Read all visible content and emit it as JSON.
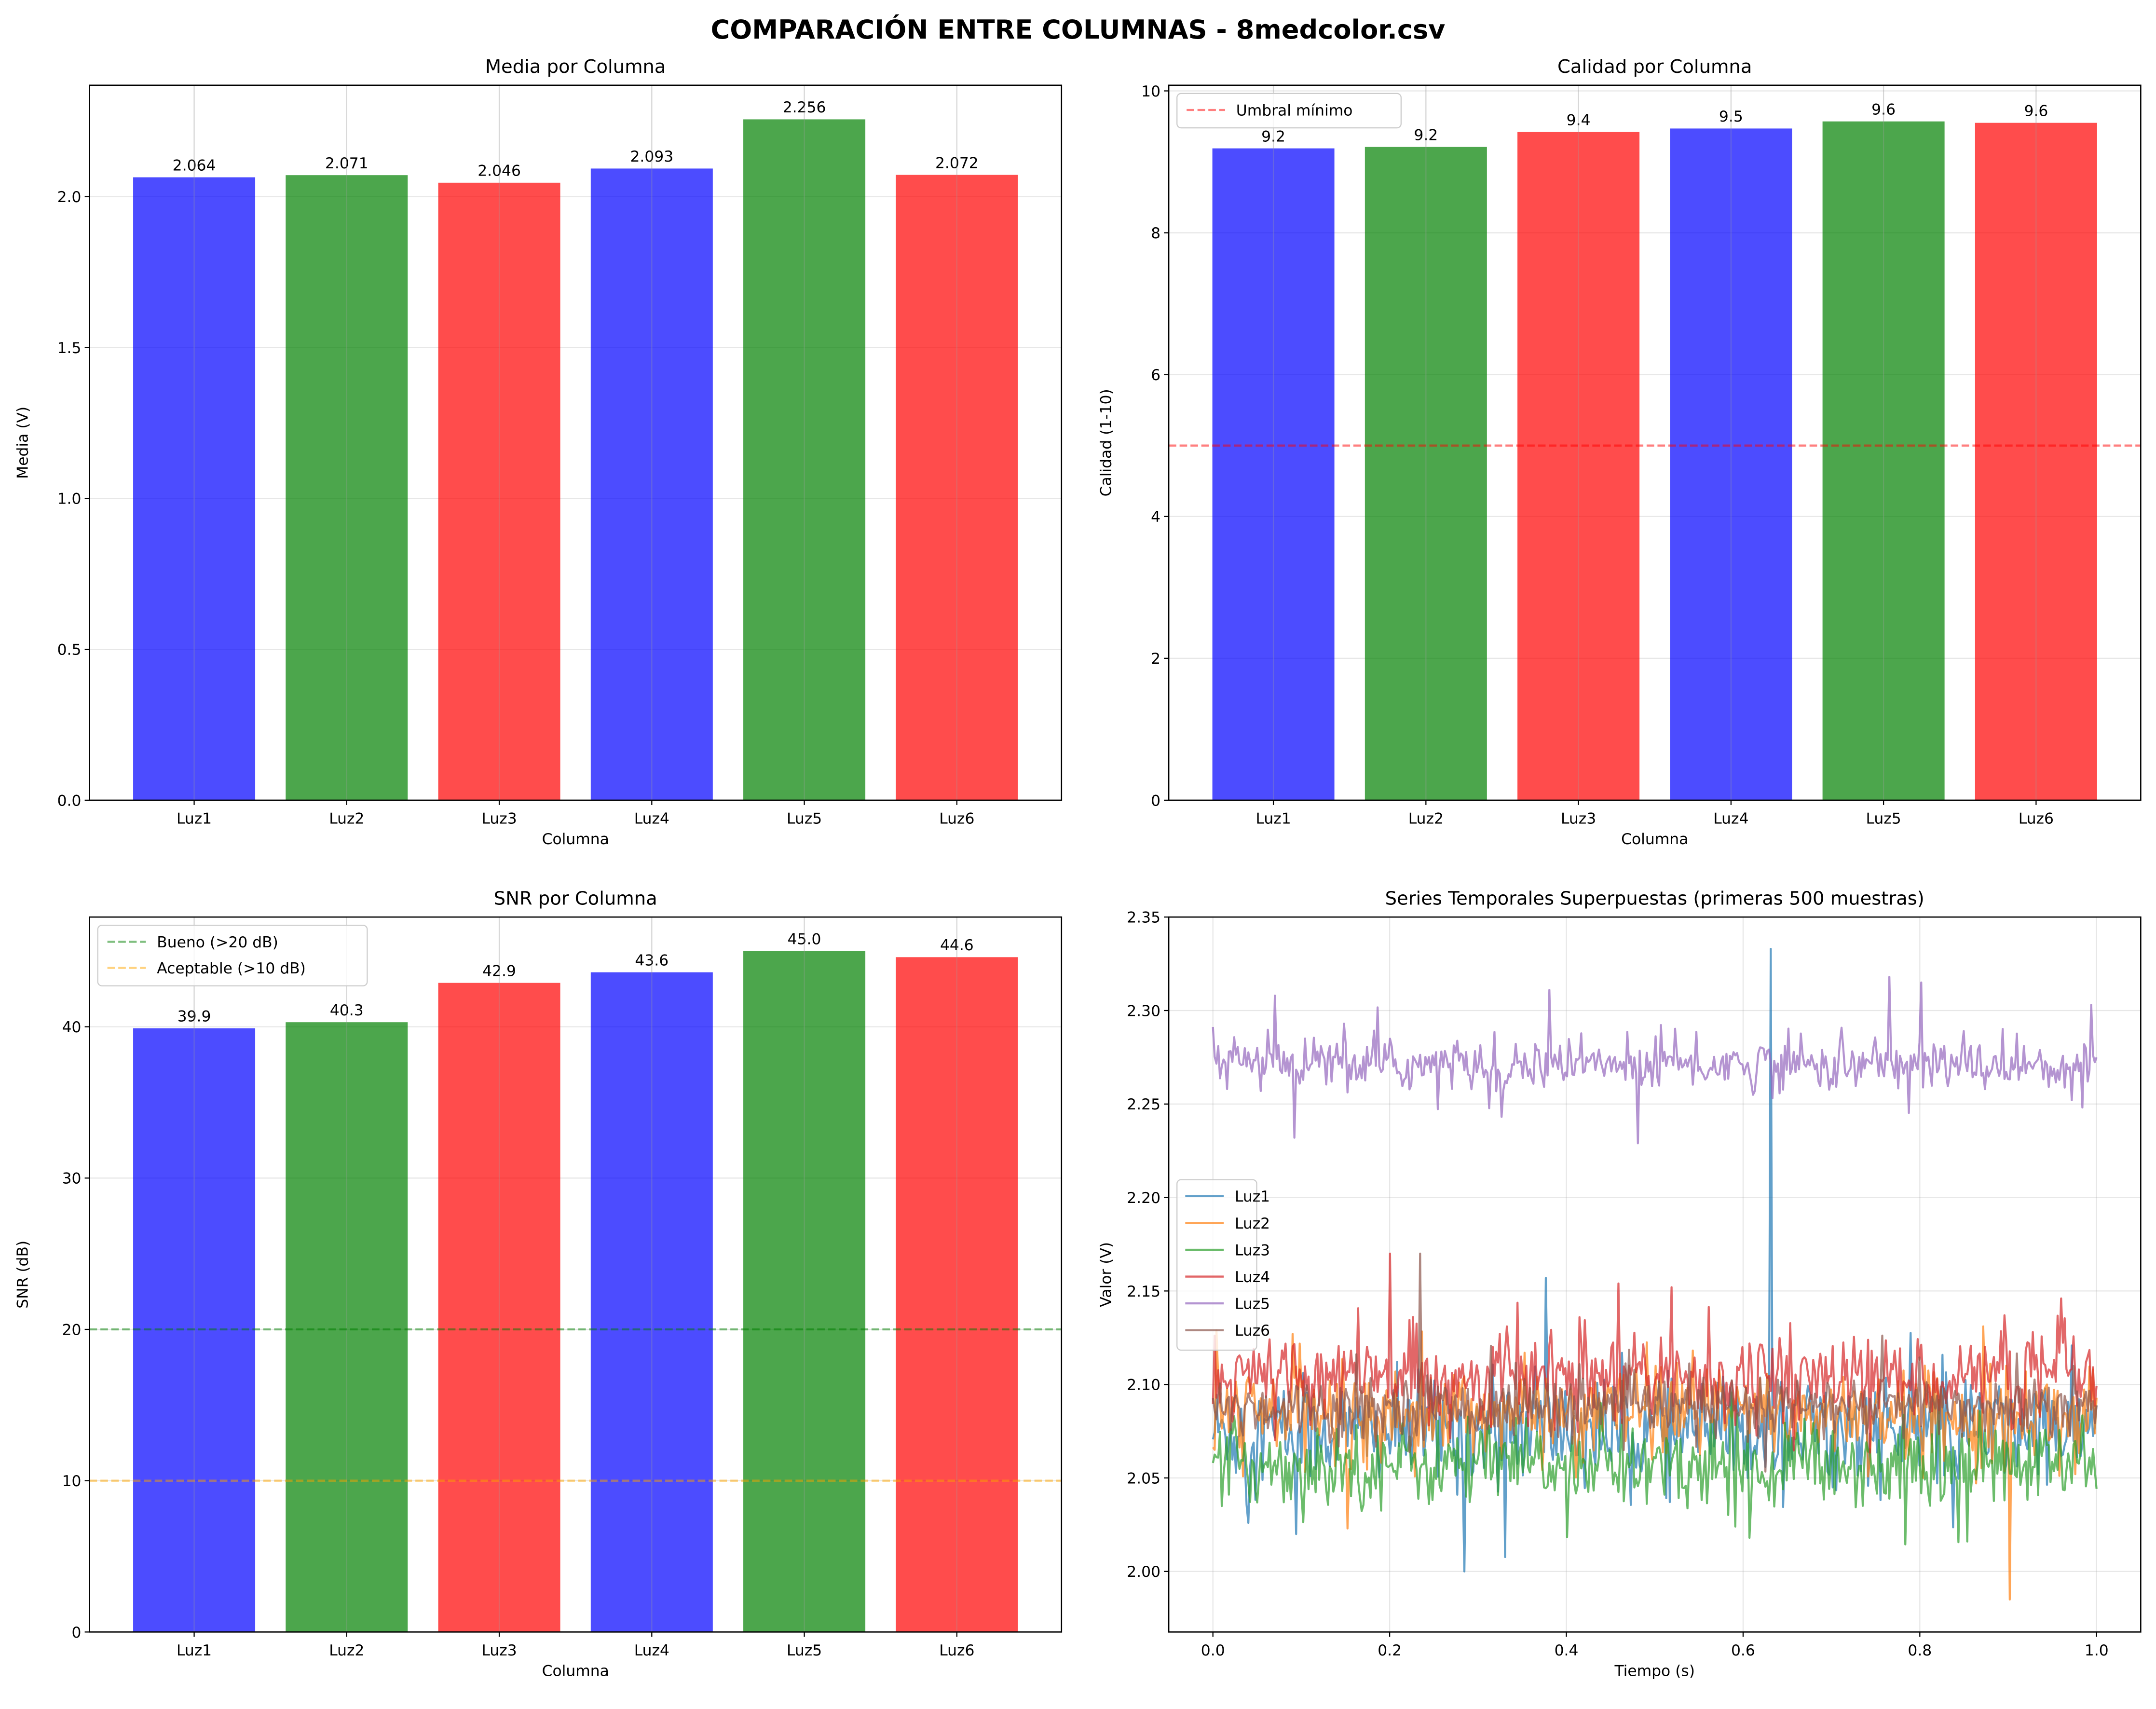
{
  "title": "COMPARACIÓN ENTRE COLUMNAS - 8medcolor.csv",
  "colors": {
    "blue": "#0000ff",
    "green": "#008000",
    "red": "#ff0000",
    "bar_alpha": 0.7
  },
  "chart_data": [
    {
      "type": "bar",
      "title": "Media por Columna",
      "xlabel": "Columna",
      "ylabel": "Media (V)",
      "categories": [
        "Luz1",
        "Luz2",
        "Luz3",
        "Luz4",
        "Luz5",
        "Luz6"
      ],
      "values": [
        2.064,
        2.071,
        2.046,
        2.093,
        2.256,
        2.072
      ],
      "labels": [
        "2.064",
        "2.071",
        "2.046",
        "2.093",
        "2.256",
        "2.072"
      ],
      "bar_colors": [
        "#0000ff",
        "#008000",
        "#ff0000",
        "#0000ff",
        "#008000",
        "#ff0000"
      ],
      "ylim": [
        0,
        2.369
      ],
      "yticks": [
        0,
        0.5,
        1.0,
        1.5,
        2.0
      ],
      "ytick_labels": [
        "0.0",
        "0.5",
        "1.0",
        "1.5",
        "2.0"
      ],
      "grid": true
    },
    {
      "type": "bar",
      "title": "Calidad por Columna",
      "xlabel": "Columna",
      "ylabel": "Calidad (1-10)",
      "categories": [
        "Luz1",
        "Luz2",
        "Luz3",
        "Luz4",
        "Luz5",
        "Luz6"
      ],
      "values": [
        9.19,
        9.21,
        9.42,
        9.47,
        9.57,
        9.55
      ],
      "labels": [
        "9.2",
        "9.2",
        "9.4",
        "9.5",
        "9.6",
        "9.6"
      ],
      "bar_colors": [
        "#0000ff",
        "#008000",
        "#ff0000",
        "#0000ff",
        "#008000",
        "#ff0000"
      ],
      "ylim": [
        0,
        10.08
      ],
      "yticks": [
        0,
        2,
        4,
        6,
        8,
        10
      ],
      "ytick_labels": [
        "0",
        "2",
        "4",
        "6",
        "8",
        "10"
      ],
      "hlines": [
        {
          "y": 5,
          "color": "#ff0000",
          "label": "Umbral mínimo"
        }
      ],
      "legend": "top-left",
      "grid": true
    },
    {
      "type": "bar",
      "title": "SNR por Columna",
      "xlabel": "Columna",
      "ylabel": "SNR (dB)",
      "categories": [
        "Luz1",
        "Luz2",
        "Luz3",
        "Luz4",
        "Luz5",
        "Luz6"
      ],
      "values": [
        39.9,
        40.3,
        42.9,
        43.6,
        45.0,
        44.6
      ],
      "labels": [
        "39.9",
        "40.3",
        "42.9",
        "43.6",
        "45.0",
        "44.6"
      ],
      "bar_colors": [
        "#0000ff",
        "#008000",
        "#ff0000",
        "#0000ff",
        "#008000",
        "#ff0000"
      ],
      "ylim": [
        0,
        47.25
      ],
      "yticks": [
        0,
        10,
        20,
        30,
        40
      ],
      "ytick_labels": [
        "0",
        "10",
        "20",
        "30",
        "40"
      ],
      "hlines": [
        {
          "y": 20,
          "color": "#008000",
          "label": "Bueno (>20 dB)"
        },
        {
          "y": 10,
          "color": "#ffa500",
          "label": "Aceptable (>10 dB)"
        }
      ],
      "legend": "top-left",
      "grid": true
    },
    {
      "type": "line",
      "title": "Series Temporales Superpuestas (primeras 500 muestras)",
      "xlabel": "Tiempo (s)",
      "ylabel": "Valor (V)",
      "xlim": [
        -0.05,
        1.05
      ],
      "ylim": [
        1.9676,
        2.35
      ],
      "xticks": [
        0,
        0.2,
        0.4,
        0.6,
        0.8,
        1.0
      ],
      "xtick_labels": [
        "0.0",
        "0.2",
        "0.4",
        "0.6",
        "0.8",
        "1.0"
      ],
      "yticks": [
        2.0,
        2.05,
        2.1,
        2.15,
        2.2,
        2.25,
        2.3,
        2.35
      ],
      "ytick_labels": [
        "2.00",
        "2.05",
        "2.10",
        "2.15",
        "2.20",
        "2.25",
        "2.30",
        "2.35"
      ],
      "samples": 500,
      "legend": "center-left",
      "grid": true,
      "series": [
        {
          "name": "Luz1",
          "color": "#1f77b4",
          "level": 2.075,
          "noise": 0.014,
          "spikes": [
            [
              0.632,
              2.333
            ],
            [
              0.377,
              2.157
            ],
            [
              0.285,
              2.0
            ],
            [
              0.094,
              2.02
            ]
          ]
        },
        {
          "name": "Luz2",
          "color": "#ff7f0e",
          "level": 2.085,
          "noise": 0.012,
          "spikes": [
            [
              0.902,
              1.985
            ],
            [
              0.153,
              2.023
            ],
            [
              0.09,
              2.127
            ]
          ]
        },
        {
          "name": "Luz3",
          "color": "#2ca02c",
          "level": 2.057,
          "noise": 0.011,
          "spikes": [
            [
              0.854,
              2.016
            ],
            [
              0.607,
              2.018
            ]
          ]
        },
        {
          "name": "Luz4",
          "color": "#d62728",
          "level": 2.104,
          "noise": 0.011,
          "spikes": [
            [
              0.2,
              2.17
            ],
            [
              0.458,
              2.154
            ],
            [
              0.895,
              2.137
            ],
            [
              0.96,
              2.146
            ]
          ]
        },
        {
          "name": "Luz5",
          "color": "#9467bd",
          "level": 2.271,
          "noise": 0.007,
          "spikes": [
            [
              0.07,
              2.308
            ],
            [
              0.093,
              2.232
            ],
            [
              0.38,
              2.311
            ],
            [
              0.481,
              2.229
            ],
            [
              0.765,
              2.318
            ],
            [
              0.801,
              2.315
            ],
            [
              0.994,
              2.303
            ]
          ]
        },
        {
          "name": "Luz6",
          "color": "#8c564b",
          "level": 2.088,
          "noise": 0.008,
          "spikes": [
            [
              0.235,
              2.17
            ]
          ]
        }
      ]
    }
  ]
}
